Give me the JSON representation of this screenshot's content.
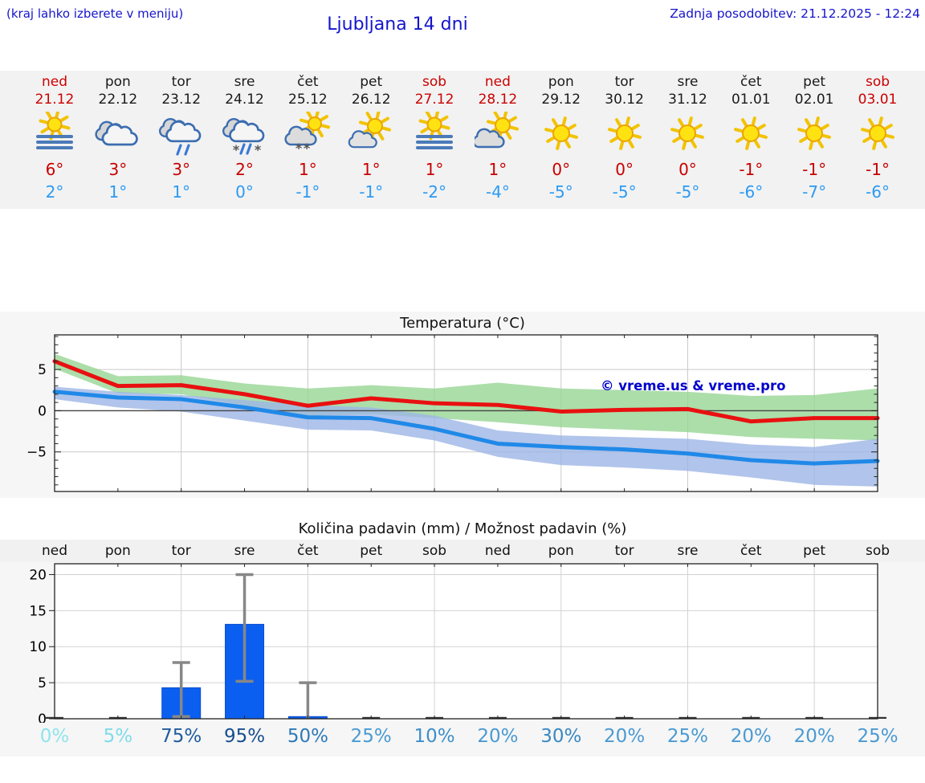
{
  "header": {
    "note_left": "(kraj lahko izberete v meniju)",
    "title": "Ljubljana 14 dni",
    "last_update": "Zadnja posodobitev: 21.12.2025 - 12:24"
  },
  "colors": {
    "header_blue": "#1515cc",
    "highlight_red": "#cc0000",
    "high_temp_red": "#c80000",
    "low_temp_blue": "#2b9af3",
    "strip_bg": "#f2f2f2",
    "chart_bg": "#f6f6f6",
    "bar_blue": "#0b5ff0",
    "watermark_blue": "#0202cc"
  },
  "forecast": {
    "days": [
      {
        "name": "ned",
        "date": "21.12",
        "red": true,
        "icon": "sun-fog",
        "high": "6°",
        "low": "2°",
        "pct": "0%",
        "pct_color": "#8ee4ec"
      },
      {
        "name": "pon",
        "date": "22.12",
        "red": false,
        "icon": "cloudy",
        "high": "3°",
        "low": "1°",
        "pct": "5%",
        "pct_color": "#7edce8"
      },
      {
        "name": "tor",
        "date": "23.12",
        "red": false,
        "icon": "rain",
        "high": "3°",
        "low": "1°",
        "pct": "75%",
        "pct_color": "#1e5c9e"
      },
      {
        "name": "sre",
        "date": "24.12",
        "red": false,
        "icon": "sleet",
        "high": "2°",
        "low": "0°",
        "pct": "95%",
        "pct_color": "#174f90"
      },
      {
        "name": "čet",
        "date": "25.12",
        "red": false,
        "icon": "snow-sun",
        "high": "1°",
        "low": "-1°",
        "pct": "50%",
        "pct_color": "#2d7ab8"
      },
      {
        "name": "pet",
        "date": "26.12",
        "red": false,
        "icon": "partly-cloudy",
        "high": "1°",
        "low": "-1°",
        "pct": "25%",
        "pct_color": "#4a9ad2"
      },
      {
        "name": "sob",
        "date": "27.12",
        "red": true,
        "icon": "sun-fog",
        "high": "1°",
        "low": "-2°",
        "pct": "10%",
        "pct_color": "#3d8fc9"
      },
      {
        "name": "ned",
        "date": "28.12",
        "red": true,
        "icon": "sun-cloud",
        "high": "1°",
        "low": "-4°",
        "pct": "20%",
        "pct_color": "#4a9ad2"
      },
      {
        "name": "pon",
        "date": "29.12",
        "red": false,
        "icon": "sunny",
        "high": "0°",
        "low": "-5°",
        "pct": "30%",
        "pct_color": "#3a88c2"
      },
      {
        "name": "tor",
        "date": "30.12",
        "red": false,
        "icon": "sunny",
        "high": "0°",
        "low": "-5°",
        "pct": "20%",
        "pct_color": "#4a9ad2"
      },
      {
        "name": "sre",
        "date": "31.12",
        "red": false,
        "icon": "sunny",
        "high": "0°",
        "low": "-5°",
        "pct": "25%",
        "pct_color": "#4a9ad2"
      },
      {
        "name": "čet",
        "date": "01.01",
        "red": false,
        "icon": "sunny",
        "high": "-1°",
        "low": "-6°",
        "pct": "20%",
        "pct_color": "#4a9ad2"
      },
      {
        "name": "pet",
        "date": "02.01",
        "red": false,
        "icon": "sunny",
        "high": "-1°",
        "low": "-7°",
        "pct": "20%",
        "pct_color": "#4a9ad2"
      },
      {
        "name": "sob",
        "date": "03.01",
        "red": true,
        "icon": "sunny",
        "high": "-1°",
        "low": "-6°",
        "pct": "25%",
        "pct_color": "#4a9ad2"
      }
    ]
  },
  "chart_data": [
    {
      "type": "line",
      "title": "Temperatura (°C)",
      "x_labels": [
        "ned",
        "pon",
        "tor",
        "sre",
        "čet",
        "pet",
        "sob",
        "ned",
        "pon",
        "tor",
        "sre",
        "čet",
        "pet",
        "sob"
      ],
      "ylim": [
        -9.8,
        9.2
      ],
      "yticks": [
        5,
        0,
        -5
      ],
      "grid": true,
      "watermark": "© vreme.us & vreme.pro",
      "series": [
        {
          "name": "max-temp",
          "color": "#e81010",
          "values": [
            6,
            3,
            3.1,
            2,
            0.6,
            1.5,
            0.9,
            0.7,
            -0.1,
            0.1,
            0.2,
            -1.3,
            -0.9,
            -0.9
          ]
        },
        {
          "name": "min-temp",
          "color": "#2089e8",
          "values": [
            2.3,
            1.6,
            1.4,
            0.4,
            -0.8,
            -0.9,
            -2.2,
            -4.0,
            -4.4,
            -4.7,
            -5.2,
            -6.0,
            -6.4,
            -6.1
          ]
        }
      ],
      "bands": [
        {
          "name": "max-range",
          "color": "#97d694",
          "upper": [
            6.9,
            4.2,
            4.3,
            3.3,
            2.7,
            3.1,
            2.7,
            3.4,
            2.7,
            2.5,
            2.3,
            1.8,
            1.9,
            2.7
          ],
          "lower": [
            5.1,
            2.1,
            2.0,
            0.6,
            -0.6,
            -0.4,
            -0.9,
            -1.4,
            -2.0,
            -2.3,
            -2.6,
            -3.2,
            -3.4,
            -3.6
          ]
        },
        {
          "name": "min-range",
          "color": "#9db5e6",
          "upper": [
            2.9,
            2.3,
            1.9,
            1.3,
            0.7,
            0.4,
            -0.6,
            -2.4,
            -3.0,
            -3.2,
            -3.4,
            -4.1,
            -4.4,
            -3.4
          ],
          "lower": [
            1.4,
            0.4,
            -0.1,
            -1.2,
            -2.3,
            -2.4,
            -3.6,
            -5.6,
            -6.6,
            -6.9,
            -7.3,
            -8.1,
            -9.0,
            -9.2
          ]
        }
      ]
    },
    {
      "type": "bar",
      "title": "Količina padavin (mm) / Možnost padavin (%)",
      "x_labels": [
        "ned",
        "pon",
        "tor",
        "sre",
        "čet",
        "pet",
        "sob",
        "ned",
        "pon",
        "tor",
        "sre",
        "čet",
        "pet",
        "sob"
      ],
      "ylim": [
        0,
        21.5
      ],
      "yticks": [
        0,
        5,
        10,
        15,
        20
      ],
      "grid": true,
      "bar_color": "#0b5ff0",
      "values": [
        0.05,
        0.1,
        4.3,
        13.1,
        0.3,
        0.05,
        0.1,
        0.05,
        0.05,
        0.05,
        0.05,
        0.05,
        0.05,
        0.05
      ],
      "error_low": [
        null,
        null,
        0.3,
        5.2,
        0,
        null,
        null,
        null,
        null,
        null,
        null,
        null,
        null,
        null
      ],
      "error_high": [
        null,
        null,
        7.8,
        20,
        5,
        null,
        null,
        null,
        null,
        null,
        null,
        null,
        null,
        null
      ],
      "percent_labels": [
        "0%",
        "5%",
        "75%",
        "95%",
        "50%",
        "25%",
        "10%",
        "20%",
        "30%",
        "20%",
        "25%",
        "20%",
        "20%",
        "25%"
      ]
    }
  ]
}
